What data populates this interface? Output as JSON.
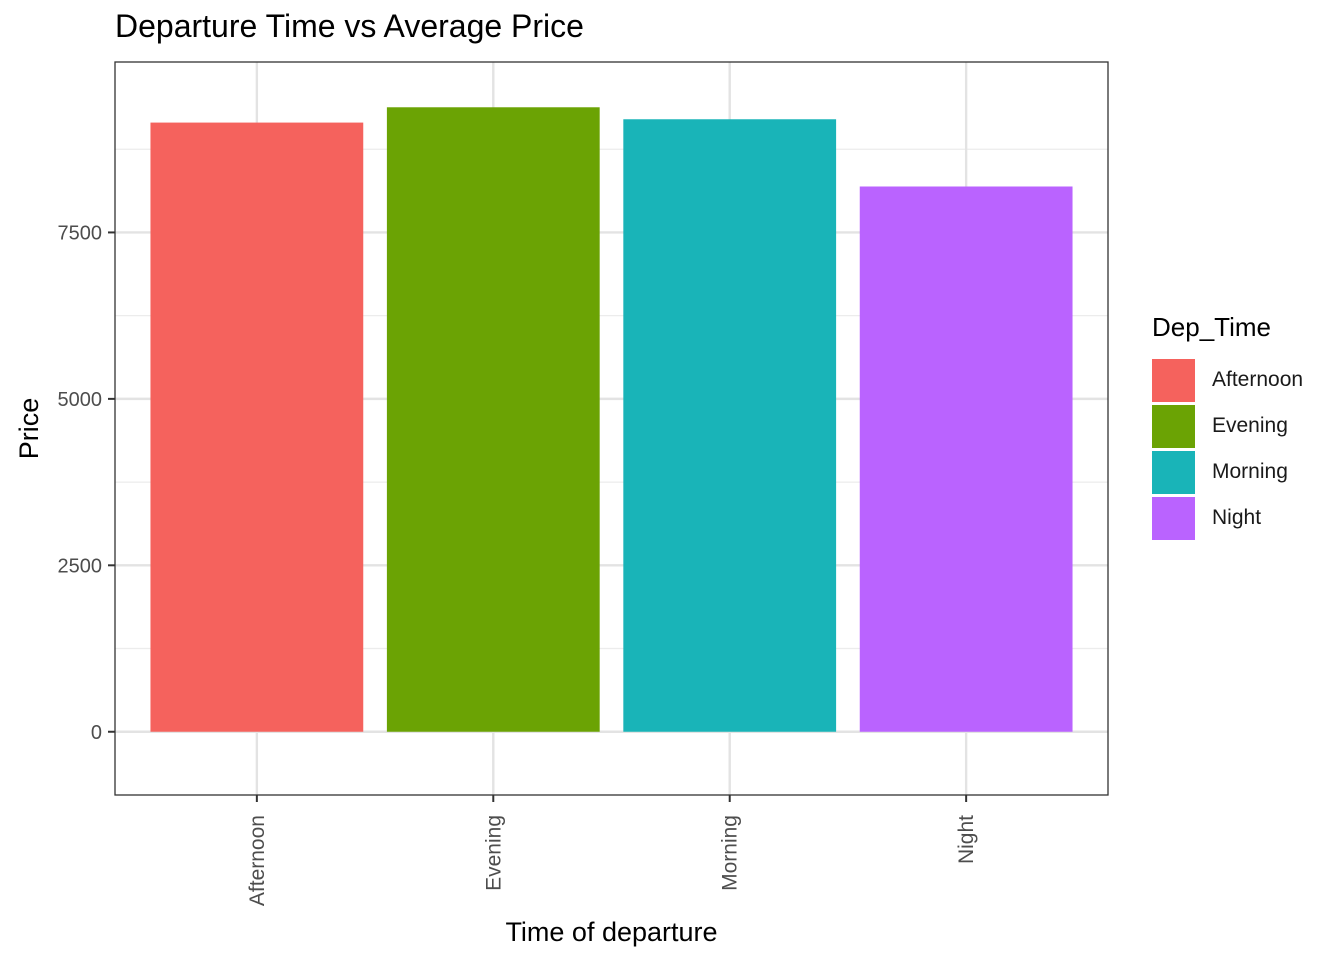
{
  "chart_data": {
    "type": "bar",
    "title": "Departure Time vs Average Price",
    "xlabel": "Time of departure",
    "ylabel": "Price",
    "categories": [
      "Afternoon",
      "Evening",
      "Morning",
      "Night"
    ],
    "values": [
      9150,
      9380,
      9200,
      8190
    ],
    "colors": [
      "#F8766D",
      "#7CAE00",
      "#00BFC4",
      "#C77CFF"
    ],
    "ylim": [
      -950,
      10060
    ],
    "yticks": [
      0,
      2500,
      5000,
      7500
    ],
    "ytick_labels": [
      "0",
      "2500",
      "5000",
      "7500"
    ],
    "grid": true,
    "legend": {
      "title": "Dep_Time",
      "placement": "right",
      "items": [
        "Afternoon",
        "Evening",
        "Morning",
        "Night"
      ]
    }
  }
}
